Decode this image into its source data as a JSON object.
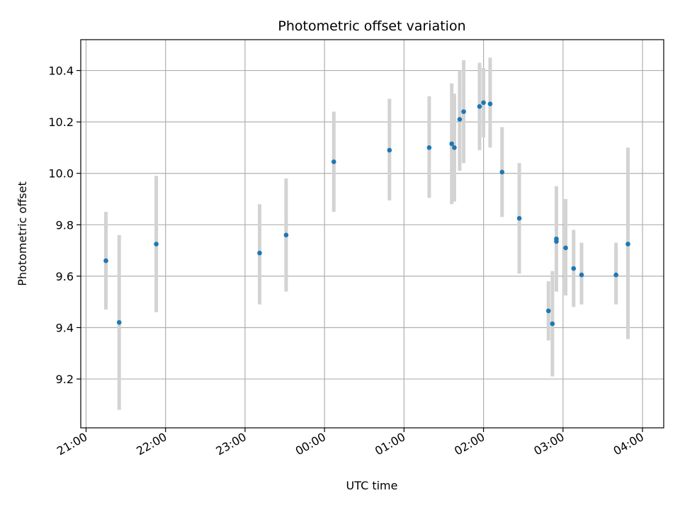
{
  "chart_data": {
    "type": "scatter",
    "title": "Photometric offset variation",
    "xlabel": "UTC time",
    "ylabel": "Photometric offset",
    "x_unit": "UTC time (HH:MM)",
    "x_ticks": [
      "21:00",
      "22:00",
      "23:00",
      "00:00",
      "01:00",
      "02:00",
      "03:00",
      "04:00"
    ],
    "y_ticks": [
      "9.2",
      "9.4",
      "9.6",
      "9.8",
      "10.0",
      "10.2",
      "10.4"
    ],
    "xlim": [
      "20:56",
      "04:16"
    ],
    "ylim": [
      9.01,
      10.52
    ],
    "grid": true,
    "colors": {
      "point": "#1f77b4",
      "errorbar": "#d3d3d3",
      "grid": "#b0b0b0",
      "axes": "#000000"
    },
    "series": [
      {
        "points": [
          {
            "x": "21:15",
            "y": 9.66,
            "y_low": 9.47,
            "y_high": 9.85
          },
          {
            "x": "21:25",
            "y": 9.42,
            "y_low": 9.08,
            "y_high": 9.76
          },
          {
            "x": "21:53",
            "y": 9.725,
            "y_low": 9.46,
            "y_high": 9.99
          },
          {
            "x": "23:11",
            "y": 9.69,
            "y_low": 9.49,
            "y_high": 9.88
          },
          {
            "x": "23:31",
            "y": 9.76,
            "y_low": 9.54,
            "y_high": 9.98
          },
          {
            "x": "00:07",
            "y": 10.045,
            "y_low": 9.85,
            "y_high": 10.24
          },
          {
            "x": "00:49",
            "y": 10.09,
            "y_low": 9.895,
            "y_high": 10.29
          },
          {
            "x": "01:19",
            "y": 10.1,
            "y_low": 9.905,
            "y_high": 10.3
          },
          {
            "x": "01:36",
            "y": 10.115,
            "y_low": 9.88,
            "y_high": 10.35
          },
          {
            "x": "01:38",
            "y": 10.1,
            "y_low": 9.89,
            "y_high": 10.31
          },
          {
            "x": "01:42",
            "y": 10.21,
            "y_low": 10.01,
            "y_high": 10.4
          },
          {
            "x": "01:45",
            "y": 10.24,
            "y_low": 10.04,
            "y_high": 10.44
          },
          {
            "x": "01:57",
            "y": 10.26,
            "y_low": 10.09,
            "y_high": 10.43
          },
          {
            "x": "02:00",
            "y": 10.275,
            "y_low": 10.14,
            "y_high": 10.41
          },
          {
            "x": "02:05",
            "y": 10.27,
            "y_low": 10.1,
            "y_high": 10.45
          },
          {
            "x": "02:14",
            "y": 10.005,
            "y_low": 9.83,
            "y_high": 10.18
          },
          {
            "x": "02:27",
            "y": 9.825,
            "y_low": 9.61,
            "y_high": 10.04
          },
          {
            "x": "02:49",
            "y": 9.465,
            "y_low": 9.35,
            "y_high": 9.58
          },
          {
            "x": "02:52",
            "y": 9.415,
            "y_low": 9.21,
            "y_high": 9.62
          },
          {
            "x": "02:55",
            "y": 9.745,
            "y_low": 9.54,
            "y_high": 9.95
          },
          {
            "x": "02:55",
            "y": 9.735,
            "y_low": 9.56,
            "y_high": 9.91
          },
          {
            "x": "03:02",
            "y": 9.71,
            "y_low": 9.525,
            "y_high": 9.9
          },
          {
            "x": "03:08",
            "y": 9.63,
            "y_low": 9.48,
            "y_high": 9.78
          },
          {
            "x": "03:14",
            "y": 9.605,
            "y_low": 9.49,
            "y_high": 9.73
          },
          {
            "x": "03:40",
            "y": 9.605,
            "y_low": 9.49,
            "y_high": 9.73
          },
          {
            "x": "03:49",
            "y": 9.725,
            "y_low": 9.355,
            "y_high": 10.1
          }
        ]
      }
    ]
  }
}
